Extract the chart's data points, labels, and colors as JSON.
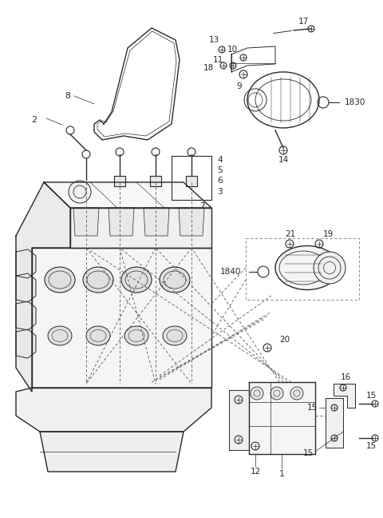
{
  "bg_color": "#ffffff",
  "line_color": "#2a2a2a",
  "fig_width": 4.8,
  "fig_height": 6.48,
  "dpi": 100
}
